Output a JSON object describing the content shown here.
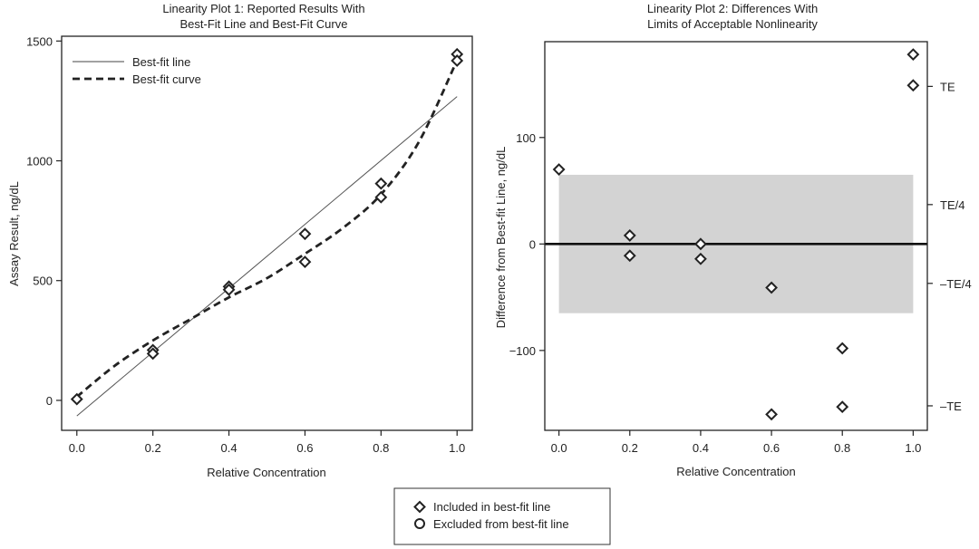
{
  "chart_data": [
    {
      "type": "scatter",
      "title": [
        "Linearity Plot 1: Reported Results With",
        "Best-Fit Line and Best-Fit Curve"
      ],
      "xlabel": "Relative Concentration",
      "ylabel": "Assay Result, ng/dL",
      "xlim": [
        -0.04,
        1.04
      ],
      "ylim": [
        -125,
        1520
      ],
      "xticks": [
        0.0,
        0.2,
        0.4,
        0.6,
        0.8,
        1.0
      ],
      "xtick_labels": [
        "0.0",
        "0.2",
        "0.4",
        "0.6",
        "0.8",
        "1.0"
      ],
      "yticks": [
        0,
        500,
        1000,
        1500
      ],
      "ytick_labels": [
        "0",
        "500",
        "1000",
        "1500"
      ],
      "points": [
        {
          "x": 0.0,
          "y": 5
        },
        {
          "x": 0.2,
          "y": 210
        },
        {
          "x": 0.2,
          "y": 195
        },
        {
          "x": 0.4,
          "y": 475
        },
        {
          "x": 0.4,
          "y": 462
        },
        {
          "x": 0.6,
          "y": 695
        },
        {
          "x": 0.6,
          "y": 578
        },
        {
          "x": 0.8,
          "y": 905
        },
        {
          "x": 0.8,
          "y": 848
        },
        {
          "x": 1.0,
          "y": 1445
        },
        {
          "x": 1.0,
          "y": 1418
        }
      ],
      "best_fit_line": {
        "x": [
          0.0,
          1.0
        ],
        "y": [
          -65,
          1268
        ]
      },
      "best_fit_curve": {
        "x": [
          0.0,
          0.1,
          0.2,
          0.3,
          0.4,
          0.5,
          0.6,
          0.7,
          0.8,
          0.9,
          1.0
        ],
        "y": [
          15,
          145,
          250,
          340,
          430,
          510,
          612,
          720,
          860,
          1080,
          1420
        ]
      },
      "legend": {
        "position": "top-left",
        "items": [
          {
            "label": "Best-fit line",
            "style": "solid"
          },
          {
            "label": "Best-fit curve",
            "style": "dashed"
          }
        ]
      }
    },
    {
      "type": "scatter",
      "title": [
        "Linearity Plot 2: Differences With",
        "Limits of Acceptable Nonlinearity"
      ],
      "xlabel": "Relative Concentration",
      "ylabel": "Difference from Best-fit Line, ng/dL",
      "xlim": [
        -0.04,
        1.04
      ],
      "ylim": [
        -175,
        190
      ],
      "xticks": [
        0.0,
        0.2,
        0.4,
        0.6,
        0.8,
        1.0
      ],
      "xtick_labels": [
        "0.0",
        "0.2",
        "0.4",
        "0.6",
        "0.8",
        "1.0"
      ],
      "yticks": [
        -100,
        0,
        100
      ],
      "ytick_labels": [
        "−100",
        "0",
        "100"
      ],
      "right_axis": [
        {
          "value": 148,
          "label": "TE"
        },
        {
          "value": 37,
          "label": "TE/4"
        },
        {
          "value": -37,
          "label": "–TE/4"
        },
        {
          "value": -152,
          "label": "–TE"
        }
      ],
      "acceptance_band": {
        "x": [
          0.0,
          1.0
        ],
        "y": [
          -65,
          65
        ]
      },
      "zero_line": 0,
      "points": [
        {
          "x": 0.0,
          "y": 70
        },
        {
          "x": 0.2,
          "y": 8
        },
        {
          "x": 0.2,
          "y": -11
        },
        {
          "x": 0.4,
          "y": 0
        },
        {
          "x": 0.4,
          "y": -14
        },
        {
          "x": 0.6,
          "y": -41
        },
        {
          "x": 0.6,
          "y": -160
        },
        {
          "x": 0.8,
          "y": -98
        },
        {
          "x": 0.8,
          "y": -153
        },
        {
          "x": 1.0,
          "y": 178
        },
        {
          "x": 1.0,
          "y": 149
        }
      ]
    }
  ],
  "legend": {
    "items": [
      {
        "marker": "diamond",
        "label": "Included in best-fit line"
      },
      {
        "marker": "circle",
        "label": "Excluded from best-fit line"
      }
    ]
  },
  "colors": {
    "ink": "#222222",
    "band": "#d3d3d3"
  }
}
